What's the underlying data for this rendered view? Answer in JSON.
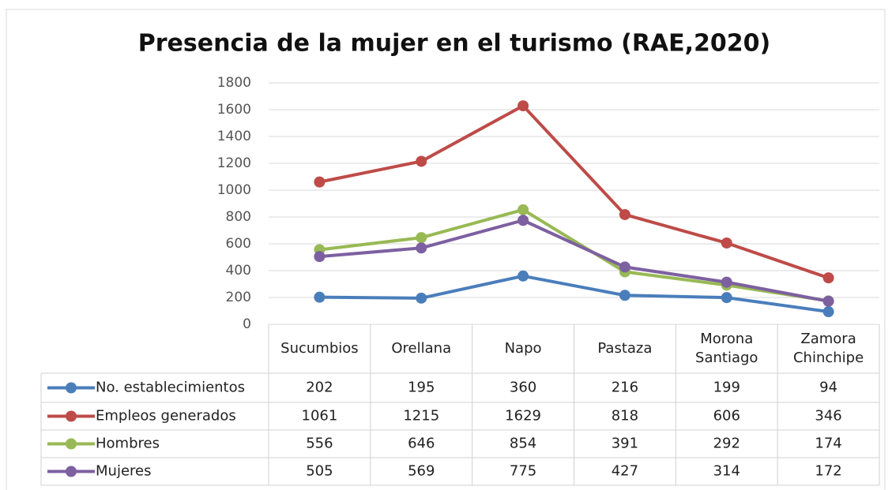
{
  "chart_data": {
    "type": "line",
    "title": "Presencia de la mujer en el turismo (RAE,2020)",
    "categories": [
      "Sucumbios",
      "Orellana",
      "Napo",
      "Pastaza",
      "Morona Santiago",
      "Zamora Chinchipe"
    ],
    "series": [
      {
        "name": "No. establecimientos",
        "color": "#4a7ebb",
        "values": [
          202,
          195,
          360,
          216,
          199,
          94
        ]
      },
      {
        "name": "Empleos generados",
        "color": "#be4b48",
        "values": [
          1061,
          1215,
          1629,
          818,
          606,
          346
        ]
      },
      {
        "name": "Hombres",
        "color": "#98b954",
        "values": [
          556,
          646,
          854,
          391,
          292,
          174
        ]
      },
      {
        "name": "Mujeres",
        "color": "#7d60a0",
        "values": [
          505,
          569,
          775,
          427,
          314,
          172
        ]
      }
    ],
    "ylim": [
      0,
      1800
    ],
    "yticks": [
      0,
      200,
      400,
      600,
      800,
      1000,
      1200,
      1400,
      1600,
      1800
    ],
    "grid": true,
    "legend": "table"
  }
}
